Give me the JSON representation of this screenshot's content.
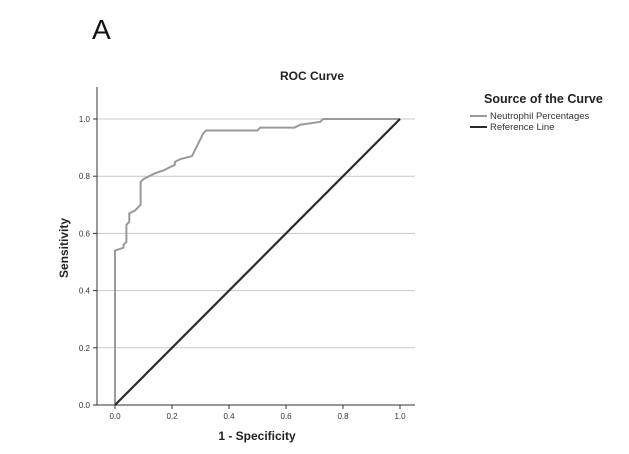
{
  "panel_label": "A",
  "chart_data": {
    "type": "line",
    "title": "ROC Curve",
    "xlabel": "1 - Specificity",
    "ylabel": "Sensitivity",
    "xlim": [
      0,
      1
    ],
    "ylim": [
      0,
      1
    ],
    "x_ticks": [
      "0.0",
      "0.2",
      "0.4",
      "0.6",
      "0.8",
      "1.0"
    ],
    "y_ticks": [
      "0.0",
      "0.2",
      "0.4",
      "0.6",
      "0.8",
      "1.0"
    ],
    "grid": "horizontal",
    "legend": {
      "title": "Source of the Curve",
      "placement": "right",
      "entries": [
        "Neutrophil Percentages",
        "Reference Line"
      ]
    },
    "series": [
      {
        "name": "Neutrophil Percentages",
        "color": "#9a9a9a",
        "points": [
          [
            0.0,
            0.0
          ],
          [
            0.0,
            0.54
          ],
          [
            0.03,
            0.55
          ],
          [
            0.03,
            0.56
          ],
          [
            0.04,
            0.57
          ],
          [
            0.04,
            0.63
          ],
          [
            0.05,
            0.64
          ],
          [
            0.05,
            0.67
          ],
          [
            0.07,
            0.68
          ],
          [
            0.08,
            0.69
          ],
          [
            0.09,
            0.7
          ],
          [
            0.09,
            0.78
          ],
          [
            0.1,
            0.79
          ],
          [
            0.12,
            0.8
          ],
          [
            0.14,
            0.81
          ],
          [
            0.17,
            0.82
          ],
          [
            0.19,
            0.83
          ],
          [
            0.21,
            0.84
          ],
          [
            0.21,
            0.85
          ],
          [
            0.23,
            0.86
          ],
          [
            0.27,
            0.87
          ],
          [
            0.28,
            0.89
          ],
          [
            0.29,
            0.91
          ],
          [
            0.31,
            0.95
          ],
          [
            0.32,
            0.96
          ],
          [
            0.5,
            0.96
          ],
          [
            0.51,
            0.97
          ],
          [
            0.63,
            0.97
          ],
          [
            0.65,
            0.98
          ],
          [
            0.72,
            0.99
          ],
          [
            0.73,
            1.0
          ],
          [
            1.0,
            1.0
          ]
        ]
      },
      {
        "name": "Reference Line",
        "color": "#2b2b2b",
        "points": [
          [
            0.0,
            0.0
          ],
          [
            1.0,
            1.0
          ]
        ]
      }
    ]
  }
}
